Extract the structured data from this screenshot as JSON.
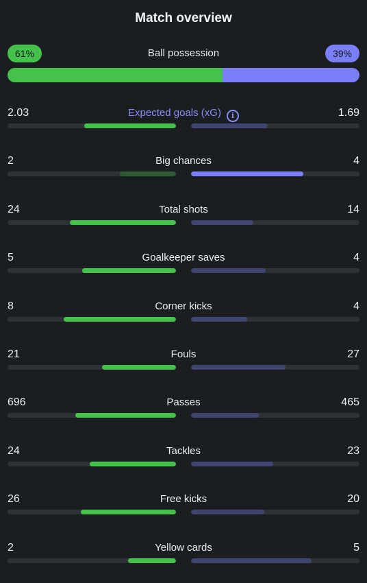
{
  "title": "Match overview",
  "colors": {
    "home": "#45c24c",
    "home_dim": "#2f5a33",
    "away": "#7b7ff7",
    "away_dim": "#3f4570",
    "track": "#2d3236"
  },
  "possession": {
    "label": "Ball possession",
    "home_text": "61%",
    "away_text": "39%",
    "home": 61,
    "away": 39
  },
  "stats": [
    {
      "label": "Expected goals (xG)",
      "home_text": "2.03",
      "away_text": "1.69",
      "home": 2.03,
      "away": 1.69,
      "highlight": true,
      "info_icon": "info-circle-icon",
      "leader": "home"
    },
    {
      "label": "Big chances",
      "home_text": "2",
      "away_text": "4",
      "home": 2,
      "away": 4,
      "leader": "away"
    },
    {
      "label": "Total shots",
      "home_text": "24",
      "away_text": "14",
      "home": 24,
      "away": 14,
      "leader": "home"
    },
    {
      "label": "Goalkeeper saves",
      "home_text": "5",
      "away_text": "4",
      "home": 5,
      "away": 4,
      "leader": "home"
    },
    {
      "label": "Corner kicks",
      "home_text": "8",
      "away_text": "4",
      "home": 8,
      "away": 4,
      "leader": "home"
    },
    {
      "label": "Fouls",
      "home_text": "21",
      "away_text": "27",
      "home": 21,
      "away": 27,
      "leader": "home"
    },
    {
      "label": "Passes",
      "home_text": "696",
      "away_text": "465",
      "home": 696,
      "away": 465,
      "leader": "home"
    },
    {
      "label": "Tackles",
      "home_text": "24",
      "away_text": "23",
      "home": 24,
      "away": 23,
      "leader": "home"
    },
    {
      "label": "Free kicks",
      "home_text": "26",
      "away_text": "20",
      "home": 26,
      "away": 20,
      "leader": "home"
    },
    {
      "label": "Yellow cards",
      "home_text": "2",
      "away_text": "5",
      "home": 2,
      "away": 5,
      "leader": "home"
    }
  ]
}
